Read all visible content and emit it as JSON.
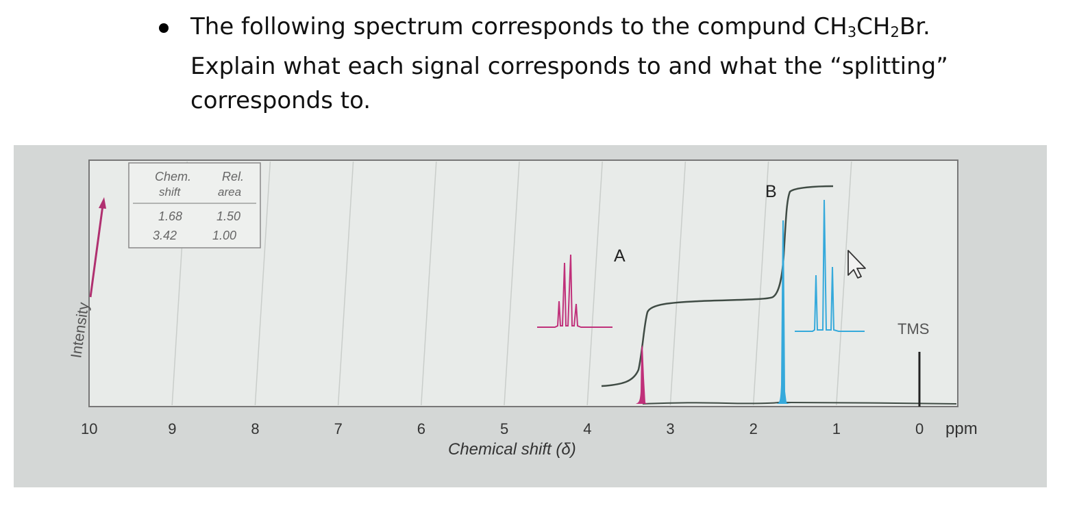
{
  "question": {
    "line1_pre": "The following spectrum corresponds to the compund CH",
    "line1_sub1": "3",
    "line1_mid": "CH",
    "line1_sub2": "2",
    "line1_post": "Br.",
    "line2": "Explain what each signal corresponds to and what the “splitting”",
    "line3": "corresponds to."
  },
  "table": {
    "col1_header_line1": "Chem.",
    "col1_header_line2": "shift",
    "col2_header_line1": "Rel.",
    "col2_header_line2": "area",
    "rows": [
      {
        "shift": "1.68",
        "area": "1.50"
      },
      {
        "shift": "3.42",
        "area": "1.00"
      }
    ]
  },
  "chart_data": {
    "type": "line",
    "title": "",
    "xlabel": "Chemical shift (δ)",
    "ylabel": "Intensity",
    "x_unit": "ppm",
    "xlim": [
      10,
      0
    ],
    "x_ticks": [
      "10",
      "9",
      "8",
      "7",
      "6",
      "5",
      "4",
      "3",
      "2",
      "1",
      "0"
    ],
    "reversed_x": true,
    "grid": true,
    "peaks": [
      {
        "label": "A",
        "shift": 3.42,
        "relative_area": 1.0,
        "multiplicity": 4,
        "color": "#c0307a"
      },
      {
        "label": "B",
        "shift": 1.68,
        "relative_area": 1.5,
        "multiplicity": 3,
        "color": "#35a9db"
      },
      {
        "label": "TMS",
        "shift": 0,
        "color": "#222222"
      }
    ]
  },
  "colors": {
    "peak_a": "#c0307a",
    "peak_b": "#35a9db",
    "frame": "#777777",
    "plot_bg": "#e7ebe8",
    "photo_bg": "#d4d7d6"
  }
}
